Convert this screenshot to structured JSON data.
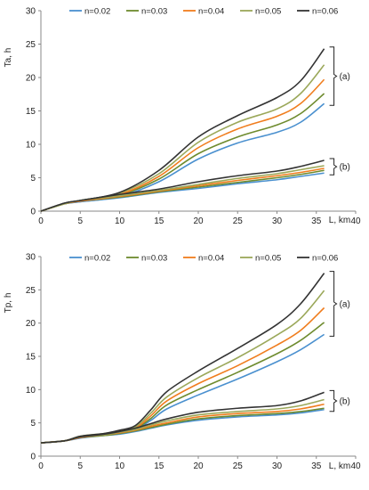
{
  "chart_data": [
    {
      "type": "line",
      "ylabel": "Ta, h",
      "xlabel": "L, km",
      "xlim": [
        0,
        40
      ],
      "ylim": [
        0,
        30
      ],
      "xticks": [
        "0",
        "5",
        "10",
        "15",
        "20",
        "25",
        "30",
        "35",
        "40"
      ],
      "yticks": [
        "0",
        "5",
        "10",
        "15",
        "20",
        "25",
        "30"
      ],
      "grid": false,
      "legend": "top",
      "annotations": [
        "(a)",
        "(b)"
      ],
      "series": [
        {
          "name": "n=0.02",
          "color": "#4A90CF",
          "group": "(a)",
          "x": [
            0,
            3,
            5,
            10,
            15,
            20,
            25,
            30,
            33,
            36
          ],
          "y": [
            0,
            1.1,
            1.4,
            2.2,
            4.4,
            7.8,
            10.2,
            11.8,
            13.3,
            16.1
          ]
        },
        {
          "name": "n=0.03",
          "color": "#6E8B2E",
          "group": "(a)",
          "x": [
            0,
            3,
            5,
            10,
            15,
            20,
            25,
            30,
            33,
            36
          ],
          "y": [
            0,
            1.1,
            1.5,
            2.4,
            4.8,
            8.6,
            11.1,
            12.9,
            14.6,
            17.6
          ]
        },
        {
          "name": "n=0.04",
          "color": "#F07D1E",
          "group": "(a)",
          "x": [
            0,
            3,
            5,
            10,
            15,
            20,
            25,
            30,
            33,
            36
          ],
          "y": [
            0,
            1.1,
            1.5,
            2.5,
            5.2,
            9.5,
            12.3,
            14.2,
            16.1,
            19.7
          ]
        },
        {
          "name": "n=0.05",
          "color": "#9BA85A",
          "group": "(a)",
          "x": [
            0,
            3,
            5,
            10,
            15,
            20,
            25,
            30,
            33,
            36
          ],
          "y": [
            0,
            1.1,
            1.6,
            2.7,
            5.6,
            10.3,
            13.3,
            15.3,
            17.6,
            21.9
          ]
        },
        {
          "name": "n=0.06",
          "color": "#333333",
          "group": "(a)",
          "x": [
            0,
            3,
            5,
            10,
            15,
            20,
            25,
            30,
            33,
            36
          ],
          "y": [
            0,
            1.2,
            1.6,
            2.8,
            6.1,
            11.1,
            14.3,
            17.0,
            19.5,
            24.3
          ]
        },
        {
          "group": "(b)",
          "color": "#4A90CF",
          "x": [
            0,
            3,
            5,
            10,
            15,
            20,
            25,
            30,
            33,
            36
          ],
          "y": [
            0,
            1.1,
            1.4,
            2.0,
            2.8,
            3.4,
            4.1,
            4.7,
            5.2,
            5.7
          ]
        },
        {
          "group": "(b)",
          "color": "#6E8B2E",
          "x": [
            0,
            3,
            5,
            10,
            15,
            20,
            25,
            30,
            33,
            36
          ],
          "y": [
            0,
            1.1,
            1.5,
            2.1,
            2.9,
            3.6,
            4.3,
            5.0,
            5.5,
            6.1
          ]
        },
        {
          "group": "(b)",
          "color": "#F07D1E",
          "x": [
            0,
            3,
            5,
            10,
            15,
            20,
            25,
            30,
            33,
            36
          ],
          "y": [
            0,
            1.1,
            1.5,
            2.2,
            3.0,
            3.8,
            4.6,
            5.3,
            5.8,
            6.4
          ]
        },
        {
          "group": "(b)",
          "color": "#9BA85A",
          "x": [
            0,
            3,
            5,
            10,
            15,
            20,
            25,
            30,
            33,
            36
          ],
          "y": [
            0,
            1.1,
            1.6,
            2.3,
            3.1,
            4.0,
            4.9,
            5.6,
            6.2,
            6.8
          ]
        },
        {
          "group": "(b)",
          "color": "#333333",
          "x": [
            0,
            3,
            5,
            10,
            15,
            20,
            25,
            30,
            33,
            36
          ],
          "y": [
            0,
            1.2,
            1.6,
            2.5,
            3.3,
            4.4,
            5.3,
            6.0,
            6.7,
            7.6
          ]
        }
      ]
    },
    {
      "type": "line",
      "ylabel": "Tp, h",
      "xlabel": "L, km",
      "xlim": [
        0,
        40
      ],
      "ylim": [
        0,
        30
      ],
      "xticks": [
        "0",
        "5",
        "10",
        "15",
        "20",
        "25",
        "30",
        "35",
        "40"
      ],
      "yticks": [
        "0",
        "5",
        "10",
        "15",
        "20",
        "25",
        "30"
      ],
      "grid": false,
      "legend": "top",
      "annotations": [
        "(a)",
        "(b)"
      ],
      "series": [
        {
          "name": "n=0.02",
          "color": "#4A90CF",
          "group": "(a)",
          "x": [
            0,
            3,
            5,
            8,
            10,
            12,
            14,
            16,
            20,
            25,
            30,
            33,
            36
          ],
          "y": [
            2,
            2.3,
            2.8,
            3.2,
            3.5,
            4.0,
            5.4,
            7.1,
            9.2,
            11.6,
            14.2,
            16.0,
            18.3
          ]
        },
        {
          "name": "n=0.03",
          "color": "#6E8B2E",
          "group": "(a)",
          "x": [
            0,
            3,
            5,
            8,
            10,
            12,
            14,
            16,
            20,
            25,
            30,
            33,
            36
          ],
          "y": [
            2,
            2.3,
            2.9,
            3.3,
            3.6,
            4.1,
            5.7,
            7.7,
            10.0,
            12.6,
            15.4,
            17.4,
            20.1
          ]
        },
        {
          "name": "n=0.04",
          "color": "#F07D1E",
          "group": "(a)",
          "x": [
            0,
            3,
            5,
            8,
            10,
            12,
            14,
            16,
            20,
            25,
            30,
            33,
            36
          ],
          "y": [
            2,
            2.3,
            2.9,
            3.3,
            3.7,
            4.2,
            6.1,
            8.3,
            10.9,
            13.6,
            16.7,
            18.9,
            22.3
          ]
        },
        {
          "name": "n=0.05",
          "color": "#9BA85A",
          "group": "(a)",
          "x": [
            0,
            3,
            5,
            8,
            10,
            12,
            14,
            16,
            20,
            25,
            30,
            33,
            36
          ],
          "y": [
            2,
            2.3,
            3.0,
            3.4,
            3.8,
            4.4,
            6.5,
            8.9,
            11.8,
            14.8,
            18.2,
            20.7,
            24.9
          ]
        },
        {
          "name": "n=0.06",
          "color": "#333333",
          "group": "(a)",
          "x": [
            0,
            3,
            5,
            8,
            10,
            12,
            14,
            16,
            20,
            25,
            30,
            33,
            36
          ],
          "y": [
            2,
            2.3,
            3.0,
            3.4,
            3.9,
            4.6,
            7.0,
            9.7,
            12.8,
            16.2,
            19.8,
            22.9,
            27.5
          ]
        },
        {
          "group": "(b)",
          "color": "#4A90CF",
          "x": [
            0,
            3,
            5,
            8,
            10,
            12,
            14,
            16,
            20,
            25,
            30,
            33,
            36
          ],
          "y": [
            2,
            2.3,
            2.7,
            3.1,
            3.3,
            3.7,
            4.2,
            4.7,
            5.4,
            5.9,
            6.2,
            6.5,
            7.0
          ]
        },
        {
          "group": "(b)",
          "color": "#6E8B2E",
          "x": [
            0,
            3,
            5,
            8,
            10,
            12,
            14,
            16,
            20,
            25,
            30,
            33,
            36
          ],
          "y": [
            2,
            2.3,
            2.8,
            3.1,
            3.4,
            3.8,
            4.3,
            4.8,
            5.6,
            6.1,
            6.4,
            6.7,
            7.2
          ]
        },
        {
          "group": "(b)",
          "color": "#F07D1E",
          "x": [
            0,
            3,
            5,
            8,
            10,
            12,
            14,
            16,
            20,
            25,
            30,
            33,
            36
          ],
          "y": [
            2,
            2.3,
            2.8,
            3.2,
            3.5,
            3.9,
            4.5,
            5.0,
            5.9,
            6.4,
            6.7,
            7.1,
            7.8
          ]
        },
        {
          "group": "(b)",
          "color": "#9BA85A",
          "x": [
            0,
            3,
            5,
            8,
            10,
            12,
            14,
            16,
            20,
            25,
            30,
            33,
            36
          ],
          "y": [
            2,
            2.3,
            2.9,
            3.2,
            3.6,
            4.0,
            4.7,
            5.3,
            6.2,
            6.7,
            7.1,
            7.6,
            8.5
          ]
        },
        {
          "group": "(b)",
          "color": "#333333",
          "x": [
            0,
            3,
            5,
            8,
            10,
            12,
            14,
            16,
            20,
            25,
            30,
            33,
            36
          ],
          "y": [
            2,
            2.3,
            2.9,
            3.3,
            3.7,
            4.2,
            4.9,
            5.6,
            6.6,
            7.2,
            7.6,
            8.3,
            9.6
          ]
        }
      ]
    }
  ]
}
